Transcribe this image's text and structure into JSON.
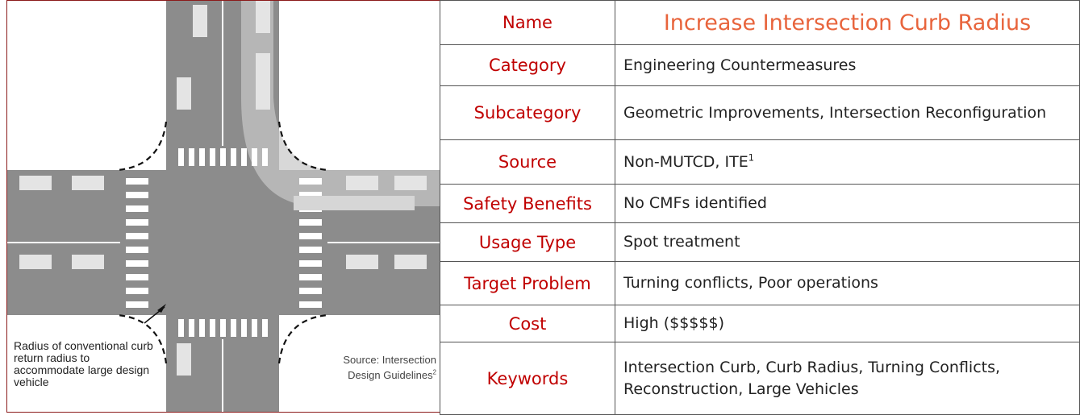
{
  "illustration": {
    "annotation": "Radius of conventional curb return radius to accommodate large design vehicle",
    "source": "Source: Intersection Design Guidelines",
    "source_note": "2"
  },
  "table": {
    "rows": [
      {
        "label": "Name",
        "value": "Increase Intersection Curb Radius"
      },
      {
        "label": "Category",
        "value": "Engineering Countermeasures"
      },
      {
        "label": "Subcategory",
        "value": "Geometric Improvements, Intersection Reconfiguration"
      },
      {
        "label": "Source",
        "value": "Non-MUTCD, ITE",
        "note": "1"
      },
      {
        "label": "Safety Benefits",
        "value": "No CMFs identified"
      },
      {
        "label": "Usage Type",
        "value": "Spot treatment"
      },
      {
        "label": "Target Problem",
        "value": "Turning conflicts, Poor operations"
      },
      {
        "label": "Cost",
        "value": "High ($$$$$)"
      },
      {
        "label": "Keywords",
        "value": "Intersection Curb, Curb Radius, Turning Conflicts, Reconstruction, Large Vehicles"
      }
    ]
  }
}
